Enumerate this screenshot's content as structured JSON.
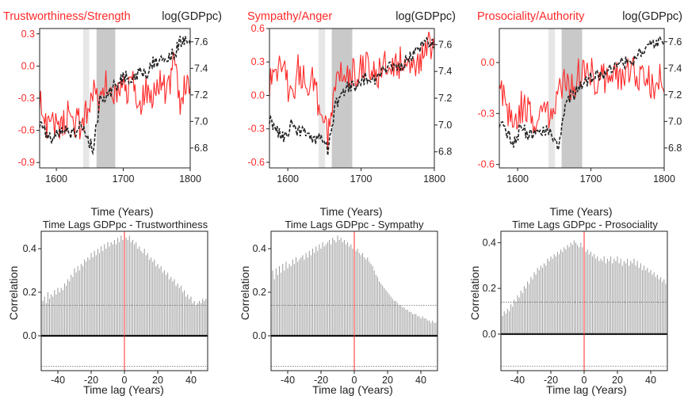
{
  "colors": {
    "red": "#ff2a2a",
    "black": "#222222",
    "shade_light": "#e6e6e6",
    "shade_dark": "#c9c9c9",
    "bars": "#9a9a9a"
  },
  "chart_data": [
    {
      "type": "line",
      "title": "Trustworthiness/Strength",
      "right_title": "log(GDPpc)",
      "xlabel": "Time (Years)",
      "xlim": [
        1575,
        1800
      ],
      "xticks": [
        1600,
        1700,
        1800
      ],
      "ylim_left": [
        -0.95,
        0.35
      ],
      "yticks_left": [
        "0.3",
        "0.0",
        "-0.3",
        "-0.6",
        "-0.9"
      ],
      "ylim_right": [
        6.65,
        7.7
      ],
      "yticks_right": [
        "7.6",
        "7.4",
        "7.2",
        "7.0",
        "6.8"
      ],
      "shaded_periods": [
        {
          "from": 1640,
          "to": 1649,
          "shade": "light"
        },
        {
          "from": 1660,
          "to": 1688,
          "shade": "dark"
        }
      ],
      "series": [
        {
          "name": "Trustworthiness/Strength",
          "axis": "left",
          "x": [
            1575,
            1585,
            1595,
            1605,
            1615,
            1625,
            1635,
            1645,
            1655,
            1665,
            1675,
            1685,
            1695,
            1705,
            1715,
            1725,
            1735,
            1745,
            1755,
            1765,
            1775,
            1785,
            1795,
            1800
          ],
          "y": [
            -0.3,
            -0.55,
            -0.5,
            -0.6,
            -0.45,
            -0.5,
            -0.55,
            -0.4,
            -0.2,
            -0.35,
            -0.1,
            -0.3,
            -0.2,
            -0.25,
            -0.15,
            -0.35,
            -0.2,
            -0.3,
            -0.1,
            -0.3,
            0.05,
            -0.4,
            -0.1,
            -0.25
          ]
        },
        {
          "name": "log(GDPpc)",
          "axis": "right",
          "x": [
            1575,
            1585,
            1595,
            1605,
            1615,
            1625,
            1635,
            1645,
            1655,
            1665,
            1675,
            1685,
            1695,
            1705,
            1715,
            1725,
            1735,
            1745,
            1755,
            1765,
            1775,
            1785,
            1795,
            1800
          ],
          "y": [
            7.0,
            6.9,
            6.85,
            6.95,
            6.95,
            6.9,
            6.95,
            6.9,
            6.8,
            7.15,
            7.2,
            7.25,
            7.3,
            7.35,
            7.3,
            7.4,
            7.35,
            7.45,
            7.45,
            7.5,
            7.5,
            7.6,
            7.6,
            7.6
          ]
        }
      ]
    },
    {
      "type": "line",
      "title": "Sympathy/Anger",
      "right_title": "log(GDPpc)",
      "xlabel": "Time (Years)",
      "xlim": [
        1575,
        1800
      ],
      "xticks": [
        1600,
        1700,
        1800
      ],
      "ylim_left": [
        -0.65,
        0.6
      ],
      "yticks_left": [
        "0.6",
        "0.3",
        "0.0",
        "-0.3",
        "-0.6"
      ],
      "ylim_right": [
        6.68,
        7.72
      ],
      "yticks_right": [
        "7.6",
        "7.4",
        "7.2",
        "7.0",
        "6.8"
      ],
      "shaded_periods": [
        {
          "from": 1642,
          "to": 1651,
          "shade": "light"
        },
        {
          "from": 1660,
          "to": 1688,
          "shade": "dark"
        }
      ],
      "series": [
        {
          "name": "Sympathy/Anger",
          "axis": "left",
          "x": [
            1575,
            1585,
            1595,
            1605,
            1615,
            1625,
            1635,
            1645,
            1655,
            1665,
            1675,
            1685,
            1695,
            1705,
            1715,
            1725,
            1735,
            1745,
            1755,
            1765,
            1775,
            1785,
            1795,
            1800
          ],
          "y": [
            0.1,
            0.25,
            0.2,
            0.0,
            0.25,
            0.1,
            0.15,
            -0.2,
            -0.35,
            0.15,
            0.25,
            0.2,
            0.2,
            0.25,
            0.3,
            0.2,
            0.3,
            0.25,
            0.3,
            0.35,
            0.3,
            0.35,
            0.45,
            0.4
          ]
        },
        {
          "name": "log(GDPpc)",
          "axis": "right",
          "x": [
            1575,
            1585,
            1595,
            1605,
            1615,
            1625,
            1635,
            1645,
            1655,
            1665,
            1675,
            1685,
            1695,
            1705,
            1715,
            1725,
            1735,
            1745,
            1755,
            1765,
            1775,
            1785,
            1795,
            1800
          ],
          "y": [
            7.05,
            6.95,
            6.9,
            7.0,
            6.95,
            6.95,
            6.9,
            6.9,
            6.8,
            7.15,
            7.25,
            7.3,
            7.3,
            7.35,
            7.3,
            7.4,
            7.4,
            7.45,
            7.45,
            7.5,
            7.55,
            7.6,
            7.6,
            7.6
          ]
        }
      ]
    },
    {
      "type": "line",
      "title": "Prosociality/Authority",
      "right_title": "log(GDPpc)",
      "xlabel": "Time (Years)",
      "xlim": [
        1575,
        1800
      ],
      "xticks": [
        1600,
        1700,
        1800
      ],
      "ylim_left": [
        -0.62,
        0.2
      ],
      "yticks_left": [
        "0.0",
        "-0.3",
        "-0.6"
      ],
      "ylim_right": [
        6.65,
        7.7
      ],
      "yticks_right": [
        "7.6",
        "7.4",
        "7.2",
        "7.0",
        "6.8"
      ],
      "shaded_periods": [
        {
          "from": 1642,
          "to": 1651,
          "shade": "light"
        },
        {
          "from": 1660,
          "to": 1688,
          "shade": "dark"
        }
      ],
      "series": [
        {
          "name": "Prosociality/Authority",
          "axis": "left",
          "x": [
            1575,
            1585,
            1595,
            1605,
            1615,
            1625,
            1635,
            1645,
            1655,
            1665,
            1675,
            1685,
            1695,
            1705,
            1715,
            1725,
            1735,
            1745,
            1755,
            1765,
            1775,
            1785,
            1795,
            1800
          ],
          "y": [
            -0.05,
            -0.3,
            -0.35,
            -0.25,
            -0.3,
            -0.35,
            -0.3,
            -0.3,
            -0.2,
            -0.1,
            -0.15,
            -0.05,
            0.0,
            -0.1,
            -0.05,
            -0.15,
            -0.05,
            -0.1,
            0.0,
            -0.1,
            -0.05,
            -0.15,
            -0.1,
            -0.1
          ]
        },
        {
          "name": "log(GDPpc)",
          "axis": "right",
          "x": [
            1575,
            1585,
            1595,
            1605,
            1615,
            1625,
            1635,
            1645,
            1655,
            1665,
            1675,
            1685,
            1695,
            1705,
            1715,
            1725,
            1735,
            1745,
            1755,
            1765,
            1775,
            1785,
            1795,
            1800
          ],
          "y": [
            7.0,
            6.9,
            6.85,
            6.95,
            6.9,
            6.9,
            6.95,
            6.9,
            6.8,
            7.15,
            7.2,
            7.25,
            7.3,
            7.35,
            7.35,
            7.4,
            7.4,
            7.45,
            7.45,
            7.5,
            7.55,
            7.6,
            7.6,
            7.6
          ]
        }
      ]
    },
    {
      "type": "bar",
      "title": "Time Lags GDPpc - Trustworthiness",
      "xlabel": "Time lag (Years)",
      "ylabel": "Correlation",
      "xlim": [
        -50,
        50
      ],
      "xticks": [
        "-40",
        "-20",
        "0",
        "20",
        "40"
      ],
      "ylim": [
        -0.16,
        0.48
      ],
      "yticks": [
        "0.4",
        "0.2",
        "0.0"
      ],
      "significance_lines": [
        0.14,
        -0.14
      ],
      "lag_marker": 0,
      "lags_from": -50,
      "lags_to": 50,
      "values": [
        0.13,
        0.16,
        0.18,
        0.15,
        0.2,
        0.17,
        0.19,
        0.18,
        0.21,
        0.19,
        0.22,
        0.2,
        0.22,
        0.21,
        0.24,
        0.23,
        0.26,
        0.25,
        0.28,
        0.27,
        0.31,
        0.29,
        0.32,
        0.3,
        0.33,
        0.32,
        0.35,
        0.34,
        0.36,
        0.35,
        0.38,
        0.36,
        0.39,
        0.37,
        0.4,
        0.38,
        0.41,
        0.39,
        0.42,
        0.4,
        0.43,
        0.41,
        0.43,
        0.42,
        0.44,
        0.42,
        0.45,
        0.43,
        0.46,
        0.44,
        0.47,
        0.45,
        0.44,
        0.46,
        0.43,
        0.44,
        0.42,
        0.43,
        0.4,
        0.41,
        0.39,
        0.38,
        0.4,
        0.37,
        0.38,
        0.35,
        0.36,
        0.34,
        0.35,
        0.32,
        0.33,
        0.31,
        0.32,
        0.29,
        0.3,
        0.28,
        0.29,
        0.26,
        0.27,
        0.25,
        0.26,
        0.23,
        0.24,
        0.22,
        0.23,
        0.2,
        0.21,
        0.18,
        0.19,
        0.17,
        0.18,
        0.15,
        0.16,
        0.14,
        0.15,
        0.16,
        0.15,
        0.17,
        0.16,
        0.17,
        0.18
      ]
    },
    {
      "type": "bar",
      "title": "Time Lags GDPpc - Sympathy",
      "xlabel": "Time lag (Years)",
      "ylabel": "Correlation",
      "xlim": [
        -50,
        50
      ],
      "xticks": [
        "-40",
        "-20",
        "0",
        "20",
        "40"
      ],
      "ylim": [
        -0.16,
        0.48
      ],
      "yticks": [
        "0.4",
        "0.2",
        "0.0"
      ],
      "significance_lines": [
        0.14,
        -0.14
      ],
      "lag_marker": 0,
      "lags_from": -50,
      "lags_to": 50,
      "values": [
        0.27,
        0.3,
        0.26,
        0.31,
        0.28,
        0.32,
        0.29,
        0.33,
        0.3,
        0.34,
        0.31,
        0.33,
        0.32,
        0.35,
        0.33,
        0.36,
        0.34,
        0.35,
        0.36,
        0.37,
        0.35,
        0.38,
        0.36,
        0.39,
        0.37,
        0.4,
        0.38,
        0.41,
        0.39,
        0.42,
        0.4,
        0.43,
        0.41,
        0.42,
        0.43,
        0.44,
        0.42,
        0.45,
        0.44,
        0.43,
        0.46,
        0.44,
        0.45,
        0.43,
        0.44,
        0.42,
        0.43,
        0.41,
        0.42,
        0.4,
        0.41,
        0.39,
        0.4,
        0.38,
        0.37,
        0.38,
        0.36,
        0.35,
        0.36,
        0.34,
        0.33,
        0.32,
        0.3,
        0.28,
        0.27,
        0.25,
        0.24,
        0.23,
        0.22,
        0.21,
        0.2,
        0.19,
        0.18,
        0.17,
        0.16,
        0.16,
        0.15,
        0.14,
        0.14,
        0.13,
        0.13,
        0.12,
        0.12,
        0.11,
        0.11,
        0.1,
        0.1,
        0.1,
        0.09,
        0.09,
        0.08,
        0.09,
        0.08,
        0.08,
        0.07,
        0.07,
        0.06,
        0.07,
        0.06,
        0.06,
        0.05
      ]
    },
    {
      "type": "bar",
      "title": "Time Lags GDPpc - Prosociality",
      "xlabel": "Time lag (Years)",
      "ylabel": "Correlation",
      "xlim": [
        -50,
        50
      ],
      "xticks": [
        "-40",
        "-20",
        "0",
        "20",
        "40"
      ],
      "ylim": [
        -0.16,
        0.45
      ],
      "yticks": [
        "0.4",
        "0.2",
        "0.0"
      ],
      "significance_lines": [
        0.14,
        -0.14
      ],
      "lag_marker": 0,
      "lags_from": -50,
      "lags_to": 50,
      "values": [
        0.09,
        0.08,
        0.1,
        0.09,
        0.11,
        0.1,
        0.13,
        0.12,
        0.15,
        0.14,
        0.17,
        0.16,
        0.19,
        0.18,
        0.21,
        0.2,
        0.23,
        0.22,
        0.25,
        0.24,
        0.27,
        0.26,
        0.29,
        0.28,
        0.3,
        0.29,
        0.31,
        0.3,
        0.33,
        0.32,
        0.34,
        0.33,
        0.35,
        0.34,
        0.36,
        0.35,
        0.37,
        0.36,
        0.38,
        0.37,
        0.39,
        0.38,
        0.4,
        0.39,
        0.41,
        0.4,
        0.39,
        0.38,
        0.4,
        0.38,
        0.37,
        0.36,
        0.37,
        0.35,
        0.36,
        0.34,
        0.35,
        0.33,
        0.34,
        0.32,
        0.33,
        0.32,
        0.34,
        0.31,
        0.33,
        0.32,
        0.34,
        0.31,
        0.33,
        0.32,
        0.34,
        0.31,
        0.33,
        0.3,
        0.32,
        0.31,
        0.33,
        0.3,
        0.32,
        0.31,
        0.33,
        0.3,
        0.32,
        0.29,
        0.31,
        0.28,
        0.3,
        0.28,
        0.29,
        0.27,
        0.28,
        0.26,
        0.27,
        0.25,
        0.26,
        0.24,
        0.25,
        0.23,
        0.24,
        0.22,
        0.23
      ]
    }
  ]
}
